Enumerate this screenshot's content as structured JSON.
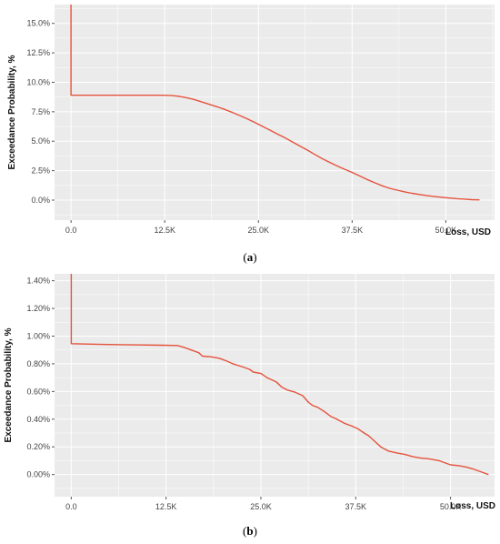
{
  "chart_data": [
    {
      "type": "line",
      "caption": "a",
      "xlabel": "Loss, USD",
      "ylabel": "Exceedance Probability, %",
      "x_tick_values": [
        0,
        12500,
        25000,
        37500,
        50000
      ],
      "x_tick_labels": [
        "0.0",
        "12.5K",
        "25.0K",
        "37.5K",
        "50.0K"
      ],
      "y_tick_values": [
        0,
        2.5,
        5,
        7.5,
        10,
        12.5,
        15
      ],
      "y_tick_labels": [
        "0.0%",
        "2.5%",
        "5.0%",
        "7.5%",
        "10.0%",
        "12.5%",
        "15.0%"
      ],
      "xlim": [
        -2200,
        56500
      ],
      "ylim": [
        -1.7,
        16.6
      ],
      "grid": true,
      "background": "#ebebeb",
      "grid_color": "#ffffff",
      "line_color": "#e5533d",
      "series": [
        {
          "x": [
            0,
            0,
            0,
            3000,
            6000,
            9000,
            12000,
            13500,
            14500,
            15500,
            16500,
            17500,
            18500,
            19500,
            20500,
            21500,
            22500,
            23500,
            24500,
            25500,
            26500,
            27500,
            28500,
            29500,
            30500,
            31500,
            32500,
            33500,
            34500,
            35500,
            36500,
            37500,
            38500,
            39500,
            40500,
            41500,
            42500,
            43500,
            44500,
            45500,
            46500,
            47500,
            48500,
            49500,
            50500,
            51500,
            52500,
            53500,
            54500
          ],
          "y": [
            16.6,
            9.2,
            8.9,
            8.9,
            8.9,
            8.9,
            8.9,
            8.87,
            8.8,
            8.68,
            8.52,
            8.32,
            8.12,
            7.92,
            7.7,
            7.45,
            7.18,
            6.9,
            6.6,
            6.28,
            5.95,
            5.62,
            5.3,
            4.95,
            4.6,
            4.25,
            3.88,
            3.52,
            3.2,
            2.9,
            2.62,
            2.35,
            2.05,
            1.75,
            1.47,
            1.22,
            1.0,
            0.85,
            0.7,
            0.58,
            0.48,
            0.38,
            0.3,
            0.24,
            0.18,
            0.12,
            0.08,
            0.04,
            0.02
          ]
        }
      ]
    },
    {
      "type": "line",
      "caption": "b",
      "xlabel": "Loss, USD",
      "ylabel": "Exceedance Probability, %",
      "x_tick_values": [
        0,
        12500,
        25000,
        37500,
        50000
      ],
      "x_tick_labels": [
        "0.0",
        "12.5K",
        "25.0K",
        "37.5K",
        "50.0K"
      ],
      "y_tick_values": [
        0,
        0.2,
        0.4,
        0.6,
        0.8,
        1.0,
        1.2,
        1.4
      ],
      "y_tick_labels": [
        "0.00%",
        "0.20%",
        "0.40%",
        "0.60%",
        "0.80%",
        "1.00%",
        "1.20%",
        "1.40%"
      ],
      "xlim": [
        -2200,
        55800
      ],
      "ylim": [
        -0.16,
        1.45
      ],
      "grid": true,
      "background": "#ebebeb",
      "grid_color": "#ffffff",
      "line_color": "#e5533d",
      "series": [
        {
          "x": [
            0,
            0,
            0,
            4000,
            8000,
            12000,
            14000,
            14800,
            15800,
            16800,
            17300,
            18500,
            19500,
            20500,
            21300,
            22500,
            23500,
            24000,
            25000,
            25800,
            27000,
            27800,
            28500,
            29500,
            30500,
            31300,
            31800,
            32500,
            33500,
            34200,
            35000,
            36000,
            37000,
            37800,
            38600,
            39200,
            40000,
            40800,
            41800,
            43000,
            44000,
            45000,
            46000,
            47000,
            48500,
            49500,
            50000,
            51000,
            52000,
            53000,
            54000,
            55000
          ],
          "y": [
            1.45,
            0.96,
            0.945,
            0.94,
            0.937,
            0.934,
            0.932,
            0.92,
            0.9,
            0.88,
            0.855,
            0.85,
            0.84,
            0.82,
            0.8,
            0.78,
            0.76,
            0.74,
            0.73,
            0.7,
            0.67,
            0.63,
            0.61,
            0.595,
            0.57,
            0.52,
            0.5,
            0.485,
            0.45,
            0.42,
            0.4,
            0.37,
            0.35,
            0.33,
            0.3,
            0.28,
            0.24,
            0.2,
            0.17,
            0.155,
            0.145,
            0.13,
            0.12,
            0.115,
            0.1,
            0.08,
            0.07,
            0.065,
            0.055,
            0.04,
            0.02,
            0.0
          ]
        }
      ]
    }
  ]
}
